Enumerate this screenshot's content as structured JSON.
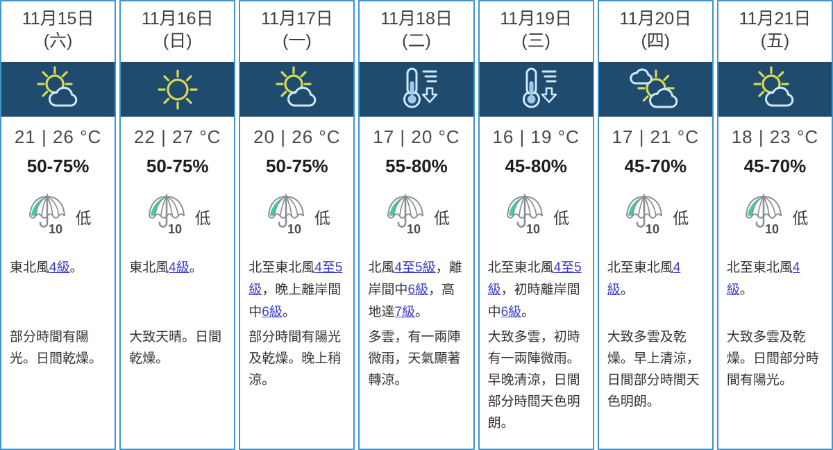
{
  "meta": {
    "page_type": "7-day-weather-forecast",
    "language": "zh-Hant"
  },
  "colors": {
    "card_border": "#3e95d0",
    "icon_band_bg": "#1e4b6e",
    "sun": "#d8db52",
    "cloud_outline": "#cfe9fb",
    "thermometer_fill": "#9dcbed",
    "umbrella_teal": "#3fcbaa",
    "umbrella_outline": "#8b8f92",
    "link": "#3c3ccc",
    "text_dark": "#323232"
  },
  "columns": [
    {
      "date": "11月15日",
      "weekday": "(六)",
      "icon": "sun-with-cloud",
      "temp": "21 | 26 °C",
      "humidity": "50-75%",
      "psr_number": "10",
      "psr_label": "低",
      "wind_segments": [
        {
          "t": "東北風"
        },
        {
          "t": "4級",
          "link": true
        },
        {
          "t": "。"
        }
      ],
      "desc": "部分時間有陽光。日間乾燥。"
    },
    {
      "date": "11月16日",
      "weekday": "(日)",
      "icon": "sunny",
      "temp": "22 | 27 °C",
      "humidity": "50-75%",
      "psr_number": "10",
      "psr_label": "低",
      "wind_segments": [
        {
          "t": "東北風"
        },
        {
          "t": "4級",
          "link": true
        },
        {
          "t": "。"
        }
      ],
      "desc": "大致天晴。日間乾燥。"
    },
    {
      "date": "11月17日",
      "weekday": "(一)",
      "icon": "sun-with-cloud",
      "temp": "20 | 26 °C",
      "humidity": "50-75%",
      "psr_number": "10",
      "psr_label": "低",
      "wind_segments": [
        {
          "t": "北至東北風"
        },
        {
          "t": "4至5級",
          "link": true
        },
        {
          "t": "，晚上離岸間中"
        },
        {
          "t": "6級",
          "link": true
        },
        {
          "t": "。"
        }
      ],
      "desc": "部分時間有陽光及乾燥。晚上稍涼。"
    },
    {
      "date": "11月18日",
      "weekday": "(二)",
      "icon": "thermometer-drop",
      "temp": "17 | 20 °C",
      "humidity": "55-80%",
      "psr_number": "10",
      "psr_label": "低",
      "wind_segments": [
        {
          "t": "北風"
        },
        {
          "t": "4至5級",
          "link": true
        },
        {
          "t": "，離岸間中"
        },
        {
          "t": "6級",
          "link": true
        },
        {
          "t": "，高地達"
        },
        {
          "t": "7級",
          "link": true
        },
        {
          "t": "。"
        }
      ],
      "desc": "多雲，有一兩陣微雨，天氣顯著轉涼。"
    },
    {
      "date": "11月19日",
      "weekday": "(三)",
      "icon": "thermometer-drop",
      "temp": "16 | 19 °C",
      "humidity": "45-80%",
      "psr_number": "10",
      "psr_label": "低",
      "wind_segments": [
        {
          "t": "北至東北風"
        },
        {
          "t": "4至5級",
          "link": true
        },
        {
          "t": "，初時離岸間中"
        },
        {
          "t": "6級",
          "link": true
        },
        {
          "t": "。"
        }
      ],
      "desc": "大致多雲，初時有一兩陣微雨。早晚清涼，日間部分時間天色明朗。"
    },
    {
      "date": "11月20日",
      "weekday": "(四)",
      "icon": "sun-between-clouds",
      "temp": "17 | 21 °C",
      "humidity": "45-70%",
      "psr_number": "10",
      "psr_label": "低",
      "wind_segments": [
        {
          "t": "北至東北風"
        },
        {
          "t": "4級",
          "link": true
        },
        {
          "t": "。"
        }
      ],
      "desc": "大致多雲及乾燥。早上清涼，日間部分時間天色明朗。"
    },
    {
      "date": "11月21日",
      "weekday": "(五)",
      "icon": "sun-with-cloud",
      "temp": "18 | 23 °C",
      "humidity": "45-70%",
      "psr_number": "10",
      "psr_label": "低",
      "wind_segments": [
        {
          "t": "北至東北風"
        },
        {
          "t": "4級",
          "link": true
        },
        {
          "t": "。"
        }
      ],
      "desc": "大致多雲及乾燥。日間部分時間有陽光。"
    }
  ]
}
